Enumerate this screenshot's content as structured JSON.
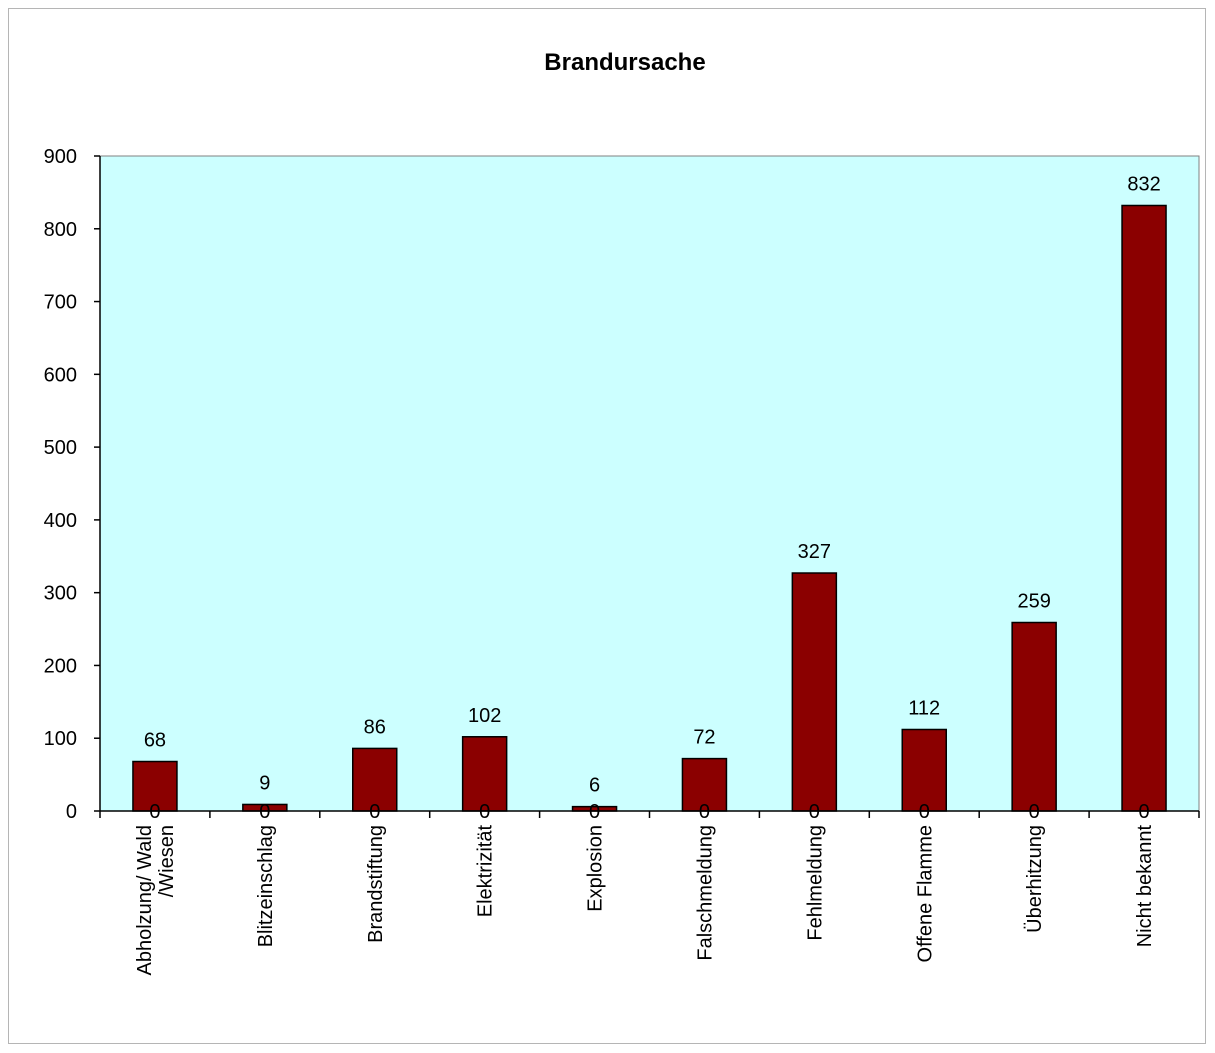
{
  "chart_data": {
    "type": "bar",
    "title": "Brandursache",
    "categories": [
      [
        "Abholzung/ Wald",
        "/Wiesen"
      ],
      [
        "Blitzeinschlag"
      ],
      [
        "Brandstiftung"
      ],
      [
        "Elektrizität"
      ],
      [
        "Explosion"
      ],
      [
        "Falschmeldung"
      ],
      [
        "Fehlmeldung"
      ],
      [
        "Offene Flamme"
      ],
      [
        "Überhitzung"
      ],
      [
        "Nicht bekannt"
      ]
    ],
    "series": [
      {
        "values": [
          68,
          9,
          86,
          102,
          6,
          72,
          327,
          112,
          259,
          832
        ],
        "color": "#8b0000"
      },
      {
        "values": [
          0,
          0,
          0,
          0,
          0,
          0,
          0,
          0,
          0,
          0
        ]
      }
    ],
    "ylim": [
      0,
      900
    ],
    "yticks": [
      0,
      100,
      200,
      300,
      400,
      500,
      600,
      700,
      800,
      900
    ],
    "plot_background": "#ccffff",
    "grid": false,
    "legend": "none"
  }
}
